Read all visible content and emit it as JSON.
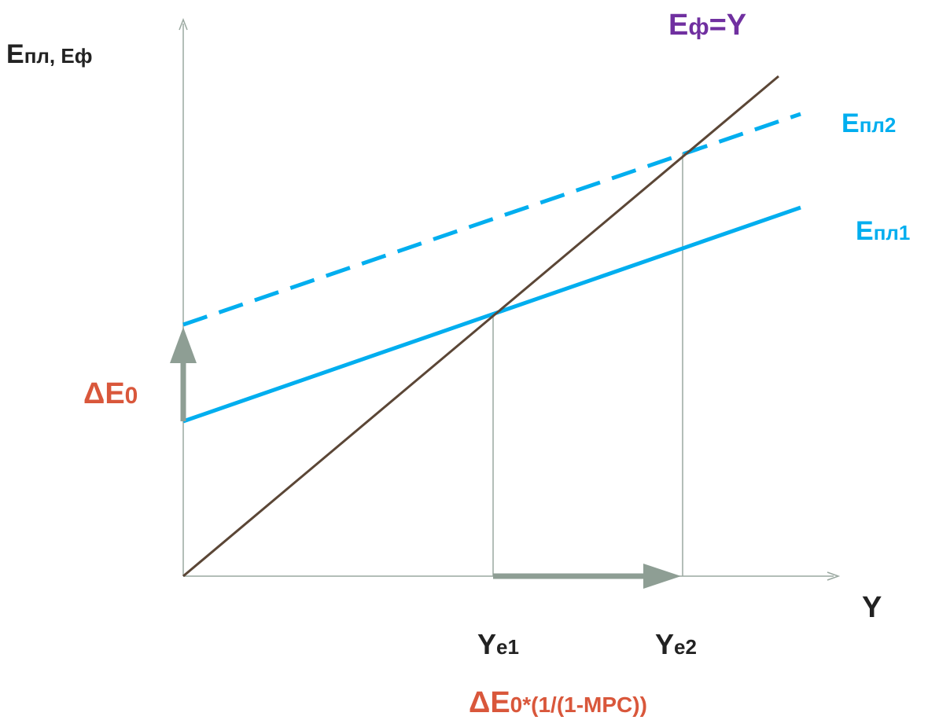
{
  "colors": {
    "axis": "#9aa8a0",
    "guide": "#9aa8a0",
    "shift_arrow": "#8e9e94",
    "actual": "#5b4636",
    "planned": "#00aeef",
    "title_dark": "#222222",
    "accent_purple": "#7030a0",
    "accent_red": "#d9573b"
  },
  "axes": {
    "y_label": {
      "main": "E",
      "sub": "пл, Eф"
    },
    "x_label": "Y"
  },
  "lines": {
    "actual": {
      "main": "E",
      "sub": "ф",
      "tail": "=Y"
    },
    "planned1": {
      "main": "E",
      "sub": "пл1"
    },
    "planned2": {
      "main": "E",
      "sub": "пл2"
    }
  },
  "equilibria": {
    "ye1": {
      "main": "Y",
      "sub": "e1"
    },
    "ye2": {
      "main": "Y",
      "sub": "e2"
    }
  },
  "shift": {
    "delta_e0": {
      "main": "ΔE",
      "sub": "0"
    },
    "multiplier": {
      "main": "ΔE",
      "sub": "0*(1/(1-MPC))"
    }
  }
}
